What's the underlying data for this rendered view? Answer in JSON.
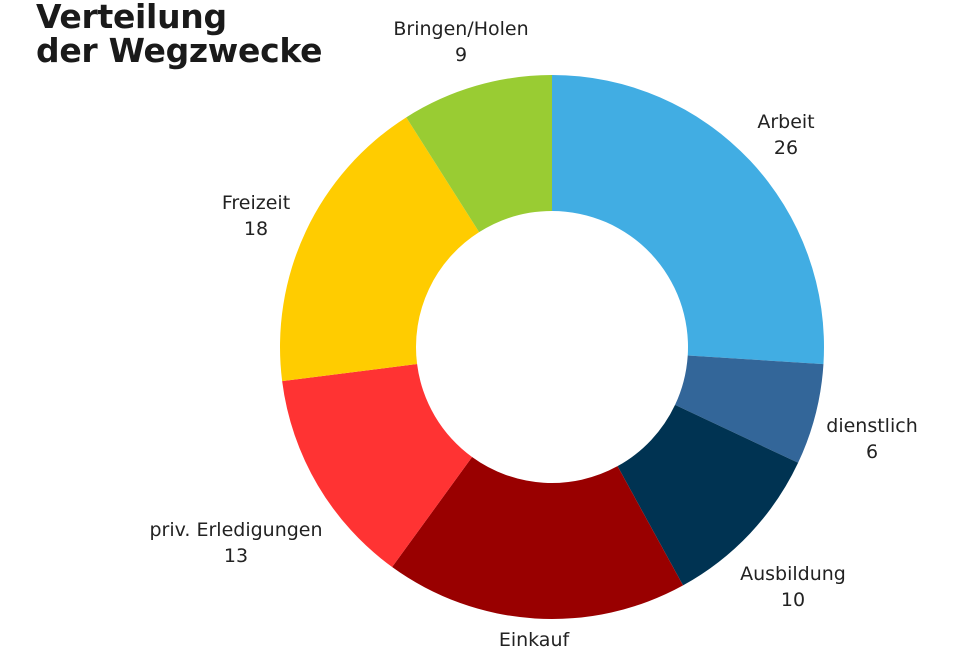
{
  "chart_data": {
    "type": "pie",
    "title_lines": [
      "Verteilung",
      "der Wegzwecke"
    ],
    "categories": [
      "Arbeit",
      "dienstlich",
      "Ausbildung",
      "Einkauf",
      "priv. Erledigungen",
      "Freizeit",
      "Bringen/Holen"
    ],
    "values": [
      26,
      6,
      10,
      18,
      13,
      18,
      9
    ],
    "value_labels": [
      "26",
      "6",
      "10",
      "",
      "13",
      "18",
      "9"
    ],
    "colors": [
      "#41ade3",
      "#336699",
      "#003352",
      "#990000",
      "#ff3333",
      "#ffcc00",
      "#99cc33"
    ],
    "donut": true,
    "start": "top, clockwise",
    "legend": "none"
  }
}
